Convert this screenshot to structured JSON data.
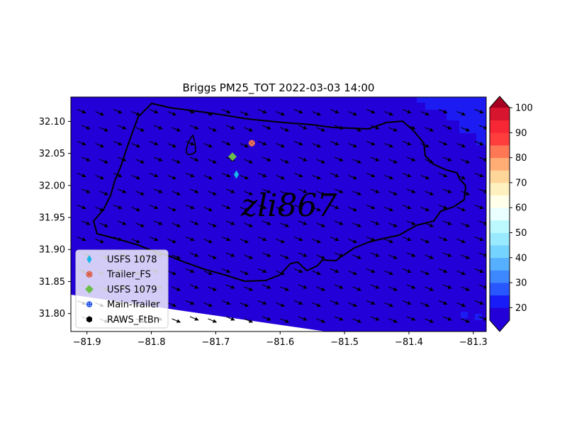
{
  "chart_data": {
    "type": "heatmap",
    "title": "Briggs PM25_TOT 2022-03-03 14:00",
    "xlabel": "",
    "ylabel": "",
    "xlim": [
      -81.925,
      -81.28
    ],
    "ylim": [
      31.772,
      32.138
    ],
    "x_ticks": [
      -81.9,
      -81.8,
      -81.7,
      -81.6,
      -81.5,
      -81.4,
      -81.3
    ],
    "x_tick_labels": [
      "−81.9",
      "−81.8",
      "−81.7",
      "−81.6",
      "−81.5",
      "−81.4",
      "−81.3"
    ],
    "y_ticks": [
      31.8,
      31.85,
      31.9,
      31.95,
      32.0,
      32.05,
      32.1
    ],
    "y_tick_labels": [
      "31.80",
      "31.85",
      "31.90",
      "31.95",
      "32.00",
      "32.05",
      "32.10"
    ],
    "field_color": "#2400d8",
    "colorbar": {
      "levels": [
        15,
        20,
        25,
        30,
        35,
        40,
        45,
        50,
        55,
        60,
        65,
        70,
        75,
        80,
        85,
        90,
        95,
        100
      ],
      "ticks": [
        20,
        30,
        40,
        50,
        60,
        70,
        80,
        90,
        100
      ],
      "tick_labels": [
        "20",
        "30",
        "40",
        "50",
        "60",
        "70",
        "80",
        "90",
        "100"
      ],
      "colors": [
        "#2400d8",
        "#181cf7",
        "#2857ff",
        "#3d87ff",
        "#56b0ff",
        "#75d3ff",
        "#99eaff",
        "#bcf9ff",
        "#eaffff",
        "#ffffea",
        "#fff1bf",
        "#ffd699",
        "#ffac75",
        "#ff7856",
        "#ff3d3d",
        "#f72735",
        "#d8152f",
        "#a50021"
      ],
      "under_color": "#2400d8",
      "over_color": "#a50021",
      "extend": "both"
    },
    "stations": [
      {
        "name": "USFS 1078",
        "lon": -81.668,
        "lat": 32.017,
        "marker": "thin-diamond",
        "color": "#17b8e8"
      },
      {
        "name": "Trailer_FS",
        "lon": -81.644,
        "lat": 32.066,
        "marker": "circle-x",
        "color": "#f07f6a"
      },
      {
        "name": "USFS 1079",
        "lon": -81.674,
        "lat": 32.045,
        "marker": "diamond",
        "color": "#6abf4b"
      },
      {
        "name": "Main-Trailer",
        "lon": null,
        "lat": null,
        "marker": "dotted-circle",
        "color": "#2152e6"
      },
      {
        "name": "RAWS_FtBn",
        "lon": null,
        "lat": null,
        "marker": "hexagon",
        "color": "#000000"
      }
    ],
    "legend_location": "lower-left",
    "wind_vectors": "uniform-southeast",
    "grid": false
  },
  "watermark": "zli867"
}
